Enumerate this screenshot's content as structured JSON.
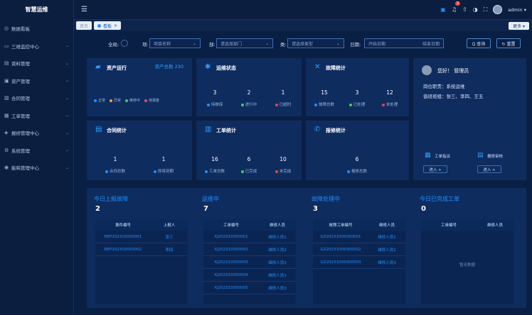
{
  "sidebar": {
    "title": "智慧运维",
    "items": [
      {
        "icon": "dashboard-icon",
        "glyph": "◎",
        "label": "数据看板",
        "arrow": ""
      },
      {
        "icon": "monitor-icon",
        "glyph": "▭",
        "label": "三维监控中心",
        "arrow": "⌄"
      },
      {
        "icon": "list-icon",
        "glyph": "▤",
        "label": "资料管理",
        "arrow": "⌄"
      },
      {
        "icon": "asset-icon",
        "glyph": "▣",
        "label": "资产管理",
        "arrow": "⌄"
      },
      {
        "icon": "contract-icon",
        "glyph": "▧",
        "label": "合同管理",
        "arrow": "⌄"
      },
      {
        "icon": "order-icon",
        "glyph": "▦",
        "label": "工单管理",
        "arrow": "⌄"
      },
      {
        "icon": "report-icon",
        "glyph": "◈",
        "label": "报修管理中心",
        "arrow": "⌄"
      },
      {
        "icon": "settings-icon",
        "glyph": "⚙",
        "label": "系统管理",
        "arrow": "⌄"
      },
      {
        "icon": "energy-icon",
        "glyph": "◉",
        "label": "能耗管理中心",
        "arrow": "⌄"
      }
    ]
  },
  "topbar": {
    "badge": "3",
    "username": "admin ▾"
  },
  "tabs": [
    {
      "label": "首页",
      "active": false
    },
    {
      "label": "看板",
      "active": true
    }
  ],
  "tab_more": "更多 ▾",
  "filters": {
    "toggle_label": "全局:",
    "project_label": "项:",
    "project_value": "项目名称",
    "dept_label": "部:",
    "dept_value": "请选择部门",
    "type_label": "类:",
    "type_value": "请选择类型",
    "date_label": "日期:",
    "date_start": "开始日期",
    "date_end": "结束日期",
    "search_btn": "Q 查询",
    "reset_btn": "↻ 重置"
  },
  "cards": {
    "asset": {
      "title": "资产运行",
      "extra": "资产总数 230",
      "legend": [
        "正常",
        "异常",
        "维修中",
        "待报废"
      ]
    },
    "ops": {
      "title": "运维状态",
      "stats": [
        {
          "value": "3",
          "label": "待维保"
        },
        {
          "value": "2",
          "label": "进行中"
        },
        {
          "value": "1",
          "label": "已超时"
        }
      ]
    },
    "fault": {
      "title": "故障统计",
      "stats": [
        {
          "value": "15",
          "label": "故障总数"
        },
        {
          "value": "3",
          "label": "已处理"
        },
        {
          "value": "12",
          "label": "未处理"
        }
      ]
    },
    "contract": {
      "title": "合同统计",
      "stats": [
        {
          "value": "1",
          "label": "合同总数"
        },
        {
          "value": "1",
          "label": "即将到期"
        }
      ]
    },
    "work": {
      "title": "工单统计",
      "stats": [
        {
          "value": "16",
          "label": "工单总数"
        },
        {
          "value": "6",
          "label": "已完成"
        },
        {
          "value": "10",
          "label": "未完成"
        }
      ]
    },
    "repair": {
      "title": "报修统计",
      "stats": [
        {
          "value": "6",
          "label": "报修总数"
        }
      ]
    },
    "welcome": {
      "greeting": "您好！ 管理员",
      "line1": "岗位职责：系统运维",
      "line2": "值班班组：张三、李四、王五",
      "shortcut1": "工单指派",
      "shortcut2": "报修审核",
      "btn1": "进入 >",
      "btn2": "进入 >"
    }
  },
  "panels": [
    {
      "title": "今日上报故障",
      "count": "2",
      "headers": [
        "事件编号",
        "上报人"
      ],
      "rows": [
        [
          "BEP202310050001",
          "张三"
        ],
        [
          "BEP202310050002",
          "李四"
        ]
      ]
    },
    {
      "title": "运维中",
      "count": "7",
      "headers": [
        "工单编号",
        "维修人员"
      ],
      "rows": [
        [
          "XJ202310050001",
          "维修人员1"
        ],
        [
          "XJ202310050002",
          "维修人员2"
        ],
        [
          "XJ202310050003",
          "维修人员3"
        ],
        [
          "XJ202310050004",
          "维修人员1"
        ],
        [
          "XJ202310050005",
          "维修人员3"
        ]
      ]
    },
    {
      "title": "故障处理中",
      "count": "3",
      "headers": [
        "故障工单编号",
        "维修人员"
      ],
      "rows": [
        [
          "GZ20231005000001",
          "维修人员1"
        ],
        [
          "GZ20231005000002",
          "维修人员2"
        ],
        [
          "GZ20231005000003",
          "维修人员3"
        ]
      ]
    },
    {
      "title": "今日已完成工单",
      "count": "0",
      "headers": [
        "工单编号",
        "维修人员"
      ],
      "rows": [],
      "empty": "暂无数据"
    }
  ]
}
